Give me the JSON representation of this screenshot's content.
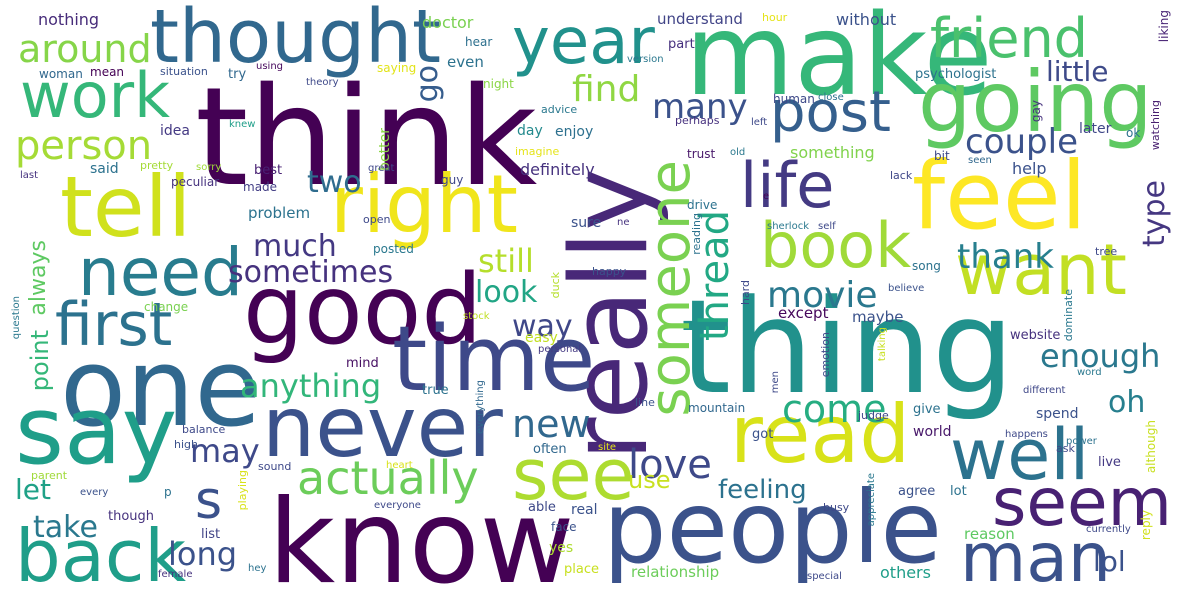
{
  "palette": {
    "dark_purple": "#440154",
    "indigo": "#3b528b",
    "teal": "#21918c",
    "green": "#5ec962",
    "yellow": "#fde725",
    "background": "#ffffff"
  },
  "words": [
    {
      "text": "think",
      "color": "#440154"
    },
    {
      "text": "know",
      "color": "#440154"
    },
    {
      "text": "people",
      "color": "#3b528b"
    },
    {
      "text": "thing",
      "color": "#21918c"
    },
    {
      "text": "make",
      "color": "#35b779"
    },
    {
      "text": "really",
      "color": "#482878"
    },
    {
      "text": "one",
      "color": "#31688e"
    },
    {
      "text": "good",
      "color": "#440154"
    },
    {
      "text": "feel",
      "color": "#fde725"
    },
    {
      "text": "say",
      "color": "#1f9e89"
    },
    {
      "text": "time",
      "color": "#3e4989"
    },
    {
      "text": "never",
      "color": "#3b528b"
    },
    {
      "text": "read",
      "color": "#d8e219"
    },
    {
      "text": "tell",
      "color": "#d0e11c"
    },
    {
      "text": "right",
      "color": "#f0e51b"
    },
    {
      "text": "thought",
      "color": "#31688e"
    },
    {
      "text": "going",
      "color": "#5ec962"
    },
    {
      "text": "want",
      "color": "#c2df23"
    },
    {
      "text": "back",
      "color": "#1f9e89"
    },
    {
      "text": "well",
      "color": "#2c728e"
    },
    {
      "text": "see",
      "color": "#addc30"
    },
    {
      "text": "seem",
      "color": "#482173"
    },
    {
      "text": "man",
      "color": "#3b528b"
    },
    {
      "text": "work",
      "color": "#35b779"
    },
    {
      "text": "year",
      "color": "#21918c"
    },
    {
      "text": "friend",
      "color": "#4ac16d"
    },
    {
      "text": "need",
      "color": "#287c8e"
    },
    {
      "text": "book",
      "color": "#a0da39"
    },
    {
      "text": "life",
      "color": "#443a83"
    },
    {
      "text": "first",
      "color": "#2c728e"
    },
    {
      "text": "post",
      "color": "#355f8d"
    },
    {
      "text": "someone",
      "color": "#7ad151"
    },
    {
      "text": "actually",
      "color": "#6ccd5a"
    },
    {
      "text": "s",
      "color": "#3b528b"
    },
    {
      "text": "person",
      "color": "#a5db36"
    },
    {
      "text": "around",
      "color": "#86d549"
    },
    {
      "text": "thread",
      "color": "#22a884"
    },
    {
      "text": "love",
      "color": "#3e4989"
    },
    {
      "text": "new",
      "color": "#31688e"
    },
    {
      "text": "come",
      "color": "#26ad81"
    },
    {
      "text": "movie",
      "color": "#2a788e"
    },
    {
      "text": "couple",
      "color": "#3b528b"
    },
    {
      "text": "thank",
      "color": "#277f8e"
    },
    {
      "text": "enough",
      "color": "#2a788e"
    },
    {
      "text": "sometimes",
      "color": "#46327e"
    },
    {
      "text": "anything",
      "color": "#32b67a"
    },
    {
      "text": "find",
      "color": "#90d743"
    },
    {
      "text": "many",
      "color": "#3b528b"
    },
    {
      "text": "much",
      "color": "#443983"
    },
    {
      "text": "go",
      "color": "#365d8d"
    },
    {
      "text": "still",
      "color": "#b5de2b"
    },
    {
      "text": "look",
      "color": "#21a585"
    },
    {
      "text": "way",
      "color": "#3f4788"
    },
    {
      "text": "two",
      "color": "#2f6c8e"
    },
    {
      "text": "little",
      "color": "#3e4a89"
    },
    {
      "text": "type",
      "color": "#453781"
    },
    {
      "text": "oh",
      "color": "#277f8e"
    },
    {
      "text": "may",
      "color": "#3e4989"
    },
    {
      "text": "let",
      "color": "#1fa187"
    },
    {
      "text": "take",
      "color": "#2a788e"
    },
    {
      "text": "long",
      "color": "#3b528b"
    },
    {
      "text": "lol",
      "color": "#3b528b"
    },
    {
      "text": "feeling",
      "color": "#2c728e"
    },
    {
      "text": "point",
      "color": "#35b779"
    },
    {
      "text": "always",
      "color": "#5ec962"
    },
    {
      "text": "use",
      "color": "#c8e020"
    },
    {
      "text": "nothing",
      "color": "#472c7a"
    },
    {
      "text": "doctor",
      "color": "#7ad151"
    },
    {
      "text": "understand",
      "color": "#414487"
    },
    {
      "text": "hour",
      "color": "#e5e419"
    },
    {
      "text": "without",
      "color": "#3b528b"
    },
    {
      "text": "liking",
      "color": "#482475"
    },
    {
      "text": "hear",
      "color": "#2d708e"
    },
    {
      "text": "part",
      "color": "#46307e"
    },
    {
      "text": "even",
      "color": "#2c728e"
    },
    {
      "text": "woman",
      "color": "#31688e"
    },
    {
      "text": "mean",
      "color": "#440154"
    },
    {
      "text": "situation",
      "color": "#3b528b"
    },
    {
      "text": "try",
      "color": "#31688e"
    },
    {
      "text": "using",
      "color": "#46085c"
    },
    {
      "text": "theory",
      "color": "#3e4989"
    },
    {
      "text": "saying",
      "color": "#e2e418"
    },
    {
      "text": "version",
      "color": "#2a788e"
    },
    {
      "text": "psychologist",
      "color": "#2c728e"
    },
    {
      "text": "watching",
      "color": "#481f70"
    },
    {
      "text": "night",
      "color": "#8bd646"
    },
    {
      "text": "human",
      "color": "#3e4989"
    },
    {
      "text": "close",
      "color": "#2c728e"
    },
    {
      "text": "gay",
      "color": "#46327e"
    },
    {
      "text": "advice",
      "color": "#2a788e"
    },
    {
      "text": "knew",
      "color": "#1f9e89"
    },
    {
      "text": "idea",
      "color": "#443983"
    },
    {
      "text": "better",
      "color": "#8bd646"
    },
    {
      "text": "perhaps",
      "color": "#46307e"
    },
    {
      "text": "left",
      "color": "#3e4989"
    },
    {
      "text": "day",
      "color": "#238a8d"
    },
    {
      "text": "enjoy",
      "color": "#2d708e"
    },
    {
      "text": "something",
      "color": "#81d34d"
    },
    {
      "text": "later",
      "color": "#3f4788"
    },
    {
      "text": "ok",
      "color": "#2c728e"
    },
    {
      "text": "imagine",
      "color": "#e5e419"
    },
    {
      "text": "trust",
      "color": "#48186a"
    },
    {
      "text": "old",
      "color": "#2a788e"
    },
    {
      "text": "bit",
      "color": "#3e4989"
    },
    {
      "text": "seen",
      "color": "#31688e"
    },
    {
      "text": "said",
      "color": "#2c728e"
    },
    {
      "text": "pretty",
      "color": "#a5db36"
    },
    {
      "text": "sorry",
      "color": "#a0da39"
    },
    {
      "text": "last",
      "color": "#46337f"
    },
    {
      "text": "great",
      "color": "#3f4788"
    },
    {
      "text": "peculiar",
      "color": "#46327e"
    },
    {
      "text": "best",
      "color": "#482173"
    },
    {
      "text": "made",
      "color": "#433e85"
    },
    {
      "text": "definitely",
      "color": "#46327e"
    },
    {
      "text": "help",
      "color": "#3b528b"
    },
    {
      "text": "lack",
      "color": "#3f4788"
    },
    {
      "text": "guy",
      "color": "#3f4788"
    },
    {
      "text": "problem",
      "color": "#2c728e"
    },
    {
      "text": "drive",
      "color": "#2c728e"
    },
    {
      "text": "e",
      "color": "#440154"
    },
    {
      "text": "sherlock",
      "color": "#2a788e"
    },
    {
      "text": "self",
      "color": "#3e4989"
    },
    {
      "text": "open",
      "color": "#3e4989"
    },
    {
      "text": "sure",
      "color": "#3b528b"
    },
    {
      "text": "ne",
      "color": "#46337f"
    },
    {
      "text": "posted",
      "color": "#2a788e"
    },
    {
      "text": "reading",
      "color": "#2c728e"
    },
    {
      "text": "happy",
      "color": "#3b528b"
    },
    {
      "text": "song",
      "color": "#2c728e"
    },
    {
      "text": "tree",
      "color": "#3e4989"
    },
    {
      "text": "question",
      "color": "#2a788e"
    },
    {
      "text": "change",
      "color": "#7ad151"
    },
    {
      "text": "duck",
      "color": "#b5de2b"
    },
    {
      "text": "hard",
      "color": "#3e4989"
    },
    {
      "text": "believe",
      "color": "#3b528b"
    },
    {
      "text": "stock",
      "color": "#c0df25"
    },
    {
      "text": "except",
      "color": "#46085c"
    },
    {
      "text": "maybe",
      "color": "#3b528b"
    },
    {
      "text": "dominate",
      "color": "#2a788e"
    },
    {
      "text": "easy",
      "color": "#c2df23"
    },
    {
      "text": "personal",
      "color": "#443983"
    },
    {
      "text": "website",
      "color": "#46327e"
    },
    {
      "text": "mind",
      "color": "#471063"
    },
    {
      "text": "emotion",
      "color": "#3e4989"
    },
    {
      "text": "talking",
      "color": "#c8e020"
    },
    {
      "text": "word",
      "color": "#2a788e"
    },
    {
      "text": "true",
      "color": "#2c728e"
    },
    {
      "text": "everything",
      "color": "#31688e"
    },
    {
      "text": "men",
      "color": "#3e4989"
    },
    {
      "text": "line",
      "color": "#3b528b"
    },
    {
      "text": "mountain",
      "color": "#31688e"
    },
    {
      "text": "different",
      "color": "#3f4788"
    },
    {
      "text": "judge",
      "color": "#3e4989"
    },
    {
      "text": "give",
      "color": "#2c728e"
    },
    {
      "text": "spend",
      "color": "#3b528b"
    },
    {
      "text": "world",
      "color": "#48186a"
    },
    {
      "text": "happens",
      "color": "#3e4989"
    },
    {
      "text": "power",
      "color": "#2c728e"
    },
    {
      "text": "balance",
      "color": "#3e4989"
    },
    {
      "text": "sound",
      "color": "#3e4989"
    },
    {
      "text": "high",
      "color": "#3b528b"
    },
    {
      "text": "heart",
      "color": "#d8e219"
    },
    {
      "text": "often",
      "color": "#31688e"
    },
    {
      "text": "site",
      "color": "#e5e419"
    },
    {
      "text": "got",
      "color": "#3b528b"
    },
    {
      "text": "ask",
      "color": "#3e4989"
    },
    {
      "text": "although",
      "color": "#c8e020"
    },
    {
      "text": "live",
      "color": "#443983"
    },
    {
      "text": "parent",
      "color": "#a0da39"
    },
    {
      "text": "every",
      "color": "#3b528b"
    },
    {
      "text": "p",
      "color": "#2c728e"
    },
    {
      "text": "playing",
      "color": "#d8e219"
    },
    {
      "text": "appreciate",
      "color": "#2a788e"
    },
    {
      "text": "agree",
      "color": "#3b528b"
    },
    {
      "text": "lot",
      "color": "#2c728e"
    },
    {
      "text": "busy",
      "color": "#3e4989"
    },
    {
      "text": "able",
      "color": "#3e4989"
    },
    {
      "text": "real",
      "color": "#3b528b"
    },
    {
      "text": "though",
      "color": "#46327e"
    },
    {
      "text": "list",
      "color": "#414487"
    },
    {
      "text": "everyone",
      "color": "#3e4989"
    },
    {
      "text": "face",
      "color": "#3b528b"
    },
    {
      "text": "reason",
      "color": "#5ec962"
    },
    {
      "text": "reply",
      "color": "#d0e11c"
    },
    {
      "text": "currently",
      "color": "#3e4989"
    },
    {
      "text": "yes",
      "color": "#addc30"
    },
    {
      "text": "place",
      "color": "#c8e020"
    },
    {
      "text": "relationship",
      "color": "#6ccd5a"
    },
    {
      "text": "others",
      "color": "#1f9e89"
    },
    {
      "text": "special",
      "color": "#3e4989"
    },
    {
      "text": "female",
      "color": "#46327e"
    },
    {
      "text": "hey",
      "color": "#2c728e"
    }
  ]
}
